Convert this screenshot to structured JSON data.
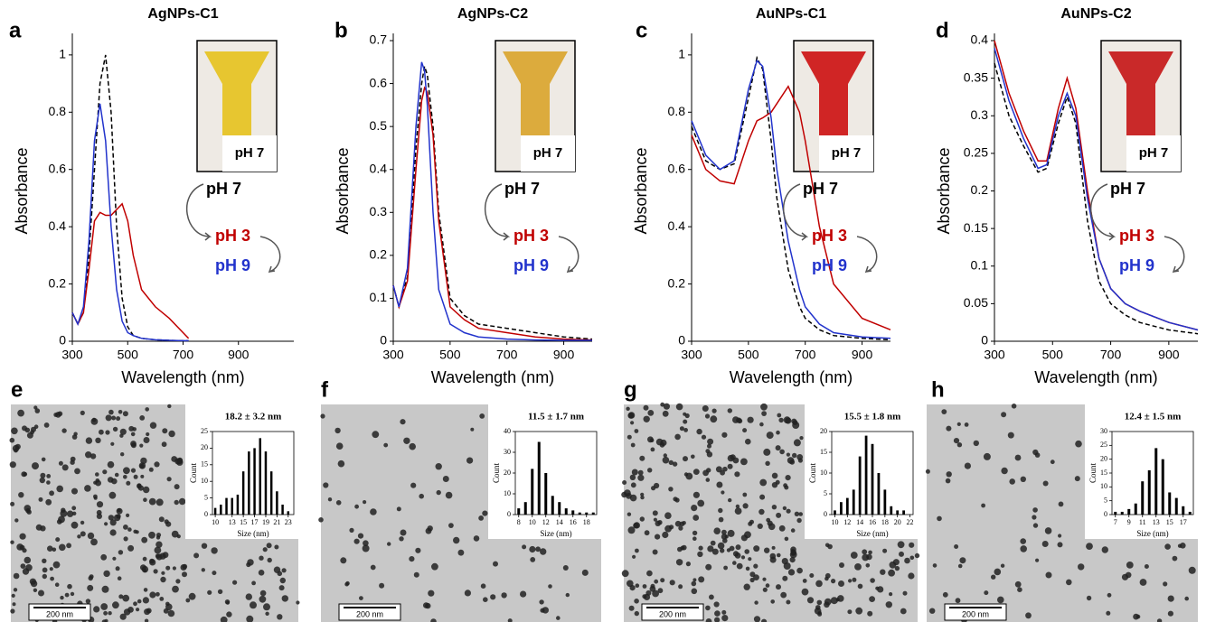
{
  "chart_data": [
    {
      "type": "line",
      "panel": "a",
      "title": "AgNPs-C1",
      "xlabel": "Wavelength (nm)",
      "ylabel": "Absorbance",
      "x": [
        300,
        320,
        340,
        360,
        380,
        400,
        420,
        440,
        460,
        480,
        500,
        520,
        550,
        600,
        650,
        700,
        720
      ],
      "series": [
        {
          "name": "pH 7",
          "color": "#000000",
          "style": "dashed",
          "values": [
            0.1,
            0.06,
            0.1,
            0.3,
            0.6,
            0.9,
            1.0,
            0.8,
            0.4,
            0.15,
            0.05,
            0.02,
            0.01,
            0.005,
            0.003,
            0.002,
            0.002
          ]
        },
        {
          "name": "pH 3",
          "color": "#c00000",
          "style": "solid",
          "values": [
            0.1,
            0.06,
            0.1,
            0.25,
            0.42,
            0.45,
            0.44,
            0.44,
            0.46,
            0.48,
            0.42,
            0.3,
            0.18,
            0.12,
            0.08,
            0.03,
            0.01
          ]
        },
        {
          "name": "pH 9",
          "color": "#2233cc",
          "style": "solid",
          "values": [
            0.1,
            0.06,
            0.12,
            0.35,
            0.7,
            0.83,
            0.7,
            0.4,
            0.18,
            0.07,
            0.03,
            0.02,
            0.01,
            0.005,
            0.003,
            0.002,
            0.002
          ]
        }
      ],
      "xlim": [
        300,
        1100
      ],
      "ylim": [
        0,
        1.05
      ],
      "xticks": [
        300,
        500,
        700,
        900
      ],
      "yticks": [
        0,
        0.2,
        0.4,
        0.6,
        0.8,
        1
      ],
      "inset_label": "pH 7",
      "inset_color": "#e6c21c"
    },
    {
      "type": "line",
      "panel": "b",
      "title": "AgNPs-C2",
      "xlabel": "Wavelength (nm)",
      "ylabel": "Absorbance",
      "x": [
        300,
        320,
        350,
        380,
        400,
        410,
        420,
        440,
        460,
        500,
        550,
        600,
        700,
        800,
        900,
        1000
      ],
      "series": [
        {
          "name": "pH 7",
          "color": "#000000",
          "style": "dashed",
          "values": [
            0.13,
            0.08,
            0.15,
            0.45,
            0.6,
            0.64,
            0.62,
            0.5,
            0.3,
            0.1,
            0.06,
            0.04,
            0.03,
            0.02,
            0.01,
            0.005
          ]
        },
        {
          "name": "pH 3",
          "color": "#c00000",
          "style": "solid",
          "values": [
            0.13,
            0.08,
            0.14,
            0.4,
            0.56,
            0.59,
            0.58,
            0.48,
            0.28,
            0.08,
            0.05,
            0.03,
            0.02,
            0.01,
            0.005,
            0.003
          ]
        },
        {
          "name": "pH 9",
          "color": "#2233cc",
          "style": "solid",
          "values": [
            0.13,
            0.08,
            0.17,
            0.5,
            0.65,
            0.63,
            0.55,
            0.3,
            0.12,
            0.04,
            0.02,
            0.01,
            0.005,
            0.003,
            0.002,
            0.002
          ]
        }
      ],
      "xlim": [
        300,
        1000
      ],
      "ylim": [
        0,
        0.7
      ],
      "xticks": [
        300,
        500,
        700,
        900
      ],
      "yticks": [
        0,
        0.1,
        0.2,
        0.3,
        0.4,
        0.5,
        0.6,
        0.7
      ],
      "inset_label": "pH 7",
      "inset_color": "#d9a42a"
    },
    {
      "type": "line",
      "panel": "c",
      "title": "AuNPs-C1",
      "xlabel": "Wavelength (nm)",
      "ylabel": "Absorbance",
      "x": [
        300,
        350,
        400,
        450,
        500,
        530,
        550,
        580,
        600,
        640,
        680,
        700,
        750,
        800,
        900,
        1000
      ],
      "series": [
        {
          "name": "pH 7",
          "color": "#000000",
          "style": "dashed",
          "values": [
            0.75,
            0.63,
            0.6,
            0.62,
            0.85,
            0.99,
            0.95,
            0.7,
            0.5,
            0.25,
            0.12,
            0.08,
            0.04,
            0.02,
            0.01,
            0.005
          ]
        },
        {
          "name": "pH 3",
          "color": "#c00000",
          "style": "solid",
          "values": [
            0.72,
            0.6,
            0.56,
            0.55,
            0.7,
            0.77,
            0.78,
            0.8,
            0.83,
            0.89,
            0.8,
            0.7,
            0.4,
            0.2,
            0.08,
            0.04
          ]
        },
        {
          "name": "pH 9",
          "color": "#2233cc",
          "style": "solid",
          "values": [
            0.77,
            0.65,
            0.6,
            0.63,
            0.88,
            0.98,
            0.96,
            0.78,
            0.6,
            0.35,
            0.18,
            0.12,
            0.06,
            0.03,
            0.015,
            0.01
          ]
        }
      ],
      "xlim": [
        300,
        1000
      ],
      "ylim": [
        0,
        1.05
      ],
      "xticks": [
        300,
        500,
        700,
        900
      ],
      "yticks": [
        0,
        0.2,
        0.4,
        0.6,
        0.8,
        1
      ],
      "inset_label": "pH 7",
      "inset_color": "#cc1010"
    },
    {
      "type": "line",
      "panel": "d",
      "title": "AuNPs-C2",
      "xlabel": "Wavelength (nm)",
      "ylabel": "Absorbance",
      "x": [
        300,
        350,
        400,
        450,
        480,
        520,
        550,
        580,
        620,
        660,
        700,
        750,
        800,
        900,
        1000
      ],
      "series": [
        {
          "name": "pH 7",
          "color": "#000000",
          "style": "dashed",
          "values": [
            0.37,
            0.3,
            0.26,
            0.225,
            0.23,
            0.29,
            0.325,
            0.29,
            0.16,
            0.08,
            0.05,
            0.035,
            0.025,
            0.015,
            0.01
          ]
        },
        {
          "name": "pH 3",
          "color": "#c00000",
          "style": "solid",
          "values": [
            0.4,
            0.33,
            0.28,
            0.24,
            0.24,
            0.31,
            0.35,
            0.31,
            0.2,
            0.11,
            0.07,
            0.05,
            0.04,
            0.025,
            0.015
          ]
        },
        {
          "name": "pH 9",
          "color": "#2233cc",
          "style": "solid",
          "values": [
            0.39,
            0.32,
            0.27,
            0.23,
            0.235,
            0.3,
            0.33,
            0.3,
            0.19,
            0.11,
            0.07,
            0.05,
            0.04,
            0.025,
            0.015
          ]
        }
      ],
      "xlim": [
        300,
        1000
      ],
      "ylim": [
        0,
        0.4
      ],
      "xticks": [
        300,
        500,
        700,
        900
      ],
      "yticks": [
        0,
        0.05,
        0.1,
        0.15,
        0.2,
        0.25,
        0.3,
        0.35,
        0.4
      ],
      "inset_label": "pH 7",
      "inset_color": "#c41414"
    },
    {
      "type": "bar",
      "panel": "e",
      "title": "18.2 ± 3.2 nm",
      "xlabel": "Size (nm)",
      "ylabel": "Count",
      "scale_bar": "200 nm",
      "color": "#000000",
      "x": [
        10,
        11,
        12,
        13,
        14,
        15,
        16,
        17,
        18,
        19,
        20,
        21,
        22,
        23
      ],
      "values": [
        2,
        3,
        5,
        5,
        6,
        13,
        19,
        20,
        23,
        19,
        13,
        7,
        3,
        1
      ],
      "xlim": [
        9.5,
        24
      ],
      "ylim": [
        0,
        25
      ],
      "xticks": [
        10,
        13,
        15,
        17,
        19,
        21,
        23
      ],
      "yticks": [
        0,
        5,
        10,
        15,
        20,
        25
      ]
    },
    {
      "type": "bar",
      "panel": "f",
      "title": "11.5 ± 1.7 nm",
      "xlabel": "Size (nm)",
      "ylabel": "Count",
      "scale_bar": "200 nm",
      "color": "#000000",
      "x": [
        8,
        9,
        10,
        11,
        12,
        13,
        14,
        15,
        16,
        17,
        18,
        19
      ],
      "values": [
        3,
        6,
        22,
        35,
        20,
        9,
        6,
        3,
        2,
        1,
        1,
        1
      ],
      "xlim": [
        7.5,
        19.5
      ],
      "ylim": [
        0,
        40
      ],
      "xticks": [
        8,
        10,
        12,
        14,
        16,
        18
      ],
      "yticks": [
        0,
        10,
        20,
        30,
        40
      ]
    },
    {
      "type": "bar",
      "panel": "g",
      "title": "15.5 ± 1.8 nm",
      "xlabel": "Size (nm)",
      "ylabel": "Count",
      "scale_bar": "200 nm",
      "color": "#000000",
      "x": [
        10,
        11,
        12,
        13,
        14,
        15,
        16,
        17,
        18,
        19,
        20,
        21
      ],
      "values": [
        1,
        3,
        4,
        6,
        14,
        19,
        17,
        10,
        6,
        2,
        1,
        1
      ],
      "xlim": [
        9.5,
        22.5
      ],
      "ylim": [
        0,
        20
      ],
      "xticks": [
        10,
        12,
        14,
        16,
        18,
        20,
        22
      ],
      "yticks": [
        0,
        5,
        10,
        15,
        20
      ]
    },
    {
      "type": "bar",
      "panel": "h",
      "title": "12.4 ± 1.5 nm",
      "xlabel": "Size (nm)",
      "ylabel": "Count",
      "scale_bar": "200 nm",
      "color": "#000000",
      "x": [
        7,
        8,
        9,
        10,
        11,
        12,
        13,
        14,
        15,
        16,
        17,
        18
      ],
      "values": [
        1,
        1,
        2,
        4,
        12,
        16,
        24,
        20,
        8,
        6,
        3,
        1
      ],
      "xlim": [
        6.5,
        18.5
      ],
      "ylim": [
        0,
        30
      ],
      "xticks": [
        7,
        9,
        11,
        13,
        15,
        17
      ],
      "yticks": [
        0,
        5,
        10,
        15,
        20,
        25,
        30
      ]
    }
  ]
}
